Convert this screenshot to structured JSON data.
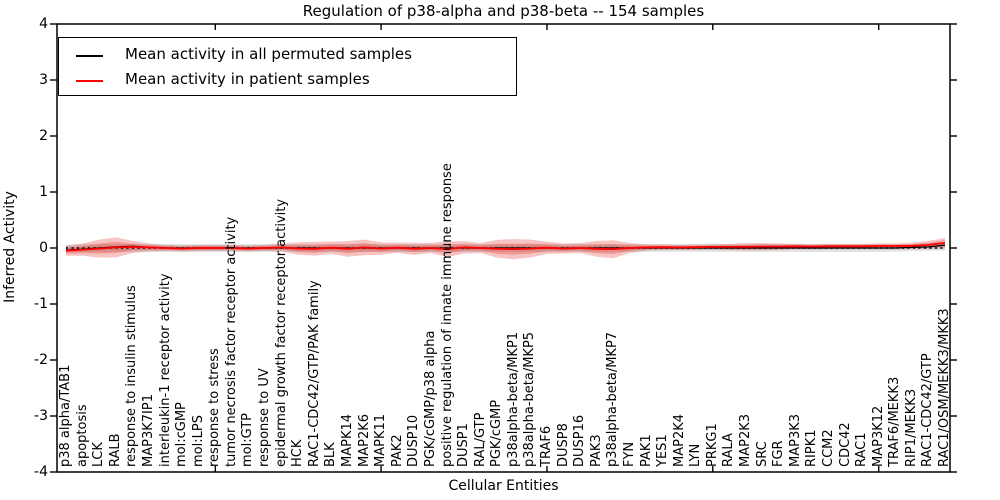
{
  "title": "Regulation of p38-alpha and p38-beta -- 154 samples",
  "legend": {
    "items": [
      {
        "label": "Mean activity in all permuted samples",
        "color": "#000000"
      },
      {
        "label": "Mean activity in patient samples",
        "color": "#ff0000"
      }
    ]
  },
  "colors": {
    "permuted_line": "#000000",
    "patient_line": "#ff0000",
    "patient_band": "#dd2c24",
    "permuted_band": "#8a8a8a",
    "axes": "#000000",
    "background": "#ffffff"
  },
  "chart_data": {
    "type": "line",
    "title": "Regulation of p38-alpha and p38-beta -- 154 samples",
    "xlabel": "Cellular Entities",
    "ylabel": "Inferred Activity",
    "ylim": [
      -4,
      4
    ],
    "yticks": [
      "-4",
      "-3",
      "-2",
      "-1",
      "0",
      "1",
      "2",
      "3",
      "4"
    ],
    "x_major_tick_indices": [
      9,
      19,
      29,
      39,
      49
    ],
    "grid": false,
    "legend_position": "upper left",
    "zero_line": {
      "color": "#000000",
      "style": "dotted"
    },
    "categories": [
      "p38 alpha/TAB1",
      "apoptosis",
      "LCK",
      "RALB",
      "response to insulin stimulus",
      "MAP3K7IP1",
      "interleukin-1 receptor activity",
      "mol:cGMP",
      "mol:LPS",
      "response to stress",
      "tumor necrosis factor receptor activity",
      "mol:GTP",
      "response to UV",
      "epidermal growth factor receptor activity",
      "HCK",
      "RAC1-CDC42/GTP/PAK family",
      "BLK",
      "MAPK14",
      "MAP2K6",
      "MAPK11",
      "PAK2",
      "DUSP10",
      "PGK/cGMP/p38 alpha",
      "positive regulation of innate immune response",
      "DUSP1",
      "RAL/GTP",
      "PGK/cGMP",
      "p38alpha-beta/MKP1",
      "p38alpha-beta/MKP5",
      "TRAF6",
      "DUSP8",
      "DUSP16",
      "PAK3",
      "p38alpha-beta/MKP7",
      "FYN",
      "PAK1",
      "YES1",
      "MAP2K4",
      "LYN",
      "PRKG1",
      "RALA",
      "MAP2K3",
      "SRC",
      "FGR",
      "MAP3K3",
      "RIPK1",
      "CCM2",
      "CDC42",
      "RAC1",
      "MAP3K12",
      "TRAF6/MEKK3",
      "RIP1/MEKK3",
      "RAC1-CDC42/GTP",
      "RAC1/OSM/MEKK3/MKK3"
    ],
    "series": [
      {
        "name": "Mean activity in all permuted samples",
        "color": "#000000",
        "values": [
          -0.04,
          -0.02,
          0.0,
          0.02,
          0.03,
          0.01,
          0.0,
          0.0,
          0.0,
          0.0,
          0.0,
          0.0,
          0.0,
          0.0,
          0.0,
          0.0,
          0.0,
          0.0,
          0.0,
          0.0,
          0.0,
          0.0,
          0.0,
          0.0,
          0.0,
          0.0,
          0.0,
          0.0,
          0.0,
          0.0,
          0.0,
          0.0,
          0.0,
          0.0,
          0.0,
          0.0,
          0.0,
          0.0,
          0.0,
          0.0,
          0.0,
          0.0,
          0.0,
          0.0,
          0.0,
          0.0,
          0.0,
          0.0,
          0.0,
          0.0,
          0.0,
          0.01,
          0.02,
          0.05
        ]
      },
      {
        "name": "Mean activity in patient samples",
        "color": "#ff0000",
        "values": [
          -0.05,
          -0.03,
          -0.01,
          0.01,
          0.02,
          0.01,
          0.0,
          -0.01,
          0.0,
          0.0,
          0.0,
          -0.01,
          0.0,
          0.01,
          -0.01,
          -0.015,
          0.005,
          -0.015,
          0.01,
          -0.01,
          0.005,
          -0.015,
          0.0,
          -0.02,
          0.01,
          0.0,
          -0.015,
          -0.02,
          -0.01,
          0.005,
          -0.01,
          0.0,
          -0.015,
          -0.02,
          0.0,
          0.01,
          0.015,
          0.01,
          0.015,
          0.02,
          0.02,
          0.02,
          0.025,
          0.025,
          0.03,
          0.025,
          0.03,
          0.03,
          0.03,
          0.035,
          0.035,
          0.04,
          0.055,
          0.09
        ]
      }
    ],
    "bands": [
      {
        "name": "permuted-envelope",
        "center": "zero",
        "color": "#8a8a8a",
        "opacity": 0.22,
        "inner_ratio": 0.55,
        "half_widths": [
          0.06,
          0.072,
          0.072,
          0.072,
          0.072,
          0.072,
          0.072,
          0.072,
          0.072,
          0.072,
          0.072,
          0.072,
          0.072,
          0.072,
          0.072,
          0.072,
          0.072,
          0.072,
          0.072,
          0.072,
          0.072,
          0.072,
          0.072,
          0.072,
          0.072,
          0.072,
          0.072,
          0.072,
          0.072,
          0.072,
          0.072,
          0.072,
          0.072,
          0.072,
          0.072,
          0.072,
          0.072,
          0.072,
          0.072,
          0.072,
          0.072,
          0.072,
          0.072,
          0.072,
          0.072,
          0.072,
          0.072,
          0.072,
          0.072,
          0.072,
          0.065,
          0.055,
          0.05,
          0.045
        ]
      },
      {
        "name": "patient-envelope",
        "center": "patient",
        "color": "#dd2c24",
        "opacity": 0.28,
        "inner_ratio": 0.55,
        "half_widths": [
          0.09,
          0.11,
          0.16,
          0.18,
          0.11,
          0.07,
          0.055,
          0.055,
          0.055,
          0.055,
          0.055,
          0.055,
          0.055,
          0.07,
          0.11,
          0.125,
          0.11,
          0.14,
          0.14,
          0.11,
          0.09,
          0.11,
          0.09,
          0.14,
          0.11,
          0.09,
          0.16,
          0.18,
          0.16,
          0.11,
          0.09,
          0.09,
          0.14,
          0.16,
          0.09,
          0.055,
          0.045,
          0.045,
          0.045,
          0.045,
          0.055,
          0.065,
          0.065,
          0.055,
          0.045,
          0.045,
          0.045,
          0.045,
          0.045,
          0.045,
          0.045,
          0.055,
          0.07,
          0.09
        ]
      }
    ]
  }
}
